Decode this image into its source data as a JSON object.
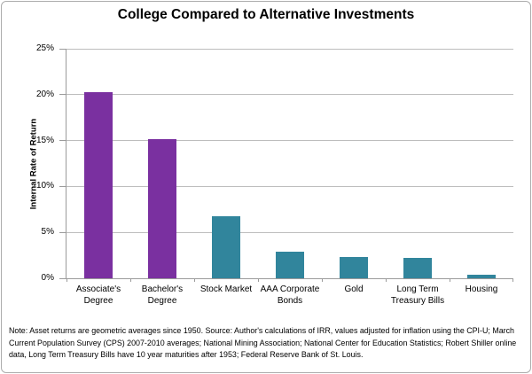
{
  "chart_data": {
    "type": "bar",
    "title": "College Compared to Alternative Investments",
    "xlabel": "",
    "ylabel": "Internal Rate of Return",
    "categories": [
      "Associate's Degree",
      "Bachelor's Degree",
      "Stock Market",
      "AAA Corporate Bonds",
      "Gold",
      "Long Term Treasury Bills",
      "Housing"
    ],
    "values": [
      20.3,
      15.2,
      6.8,
      2.9,
      2.3,
      2.2,
      0.4
    ],
    "bar_colors": [
      "#7a30a0",
      "#7a30a0",
      "#31859c",
      "#31859c",
      "#31859c",
      "#31859c",
      "#31859c"
    ],
    "ylim": [
      0,
      25
    ],
    "ytick_step": 5,
    "ytick_labels": [
      "0%",
      "5%",
      "10%",
      "15%",
      "20%",
      "25%"
    ],
    "grid": true,
    "legend": false
  },
  "colors": {
    "degree_bar": "#7a30a0",
    "investment_bar": "#31859c",
    "gridline": "#bdbdbd",
    "axis": "#9b9b9b",
    "border": "#acacac"
  },
  "note": "Note: Asset returns are geometric averages since 1950. Source: Author's calculations of IRR, values adjusted for inflation using the CPI-U; March Current Population Survey (CPS) 2007-2010 averages; National Mining Association; National Center for Education Statistics; Robert Shiller online data, Long Term Treasury Bills have 10 year maturities after 1953; Federal Reserve Bank of St. Louis."
}
